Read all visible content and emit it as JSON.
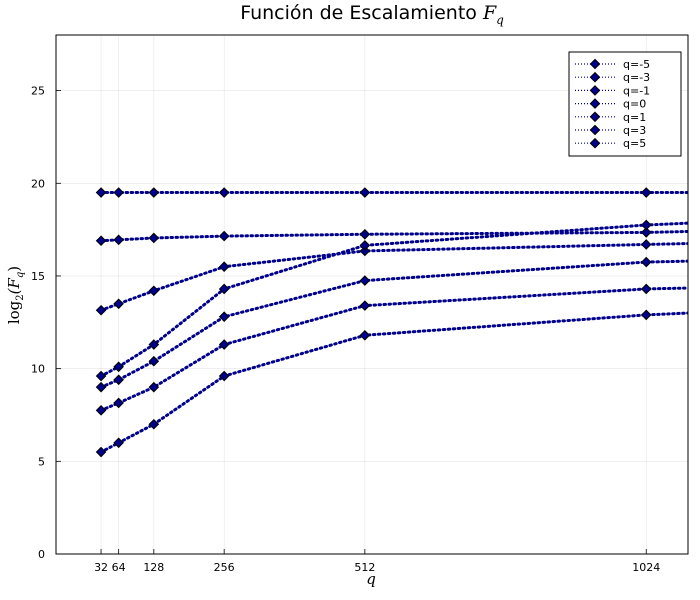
{
  "chart_data": {
    "type": "line",
    "title": "Función de Escalamiento F_q",
    "title_main": "Función de Escalamiento ",
    "title_math": "F",
    "title_sub": "q",
    "xlabel": "q",
    "ylabel_math": "log",
    "ylabel_sub": "2",
    "ylabel_arg": "(F",
    "ylabel_arg_sub": "q",
    "ylabel_close": ")",
    "x": [
      32,
      64,
      128,
      256,
      512,
      1024,
      1100
    ],
    "xlim": [
      -50,
      1100
    ],
    "ylim": [
      0,
      28
    ],
    "xticks": [
      32,
      64,
      128,
      256,
      512,
      1024
    ],
    "xtick_labels": [
      "32",
      "64",
      "128",
      "256",
      "512",
      "1024"
    ],
    "yticks": [
      0,
      5,
      10,
      15,
      20,
      25
    ],
    "ytick_labels": [
      "0",
      "5",
      "10",
      "15",
      "20",
      "25"
    ],
    "grid": true,
    "legend_position": "top-right",
    "line_color": "#00008b",
    "marker": "diamond",
    "series": [
      {
        "name": "q=-5",
        "values": [
          19.5,
          19.5,
          19.5,
          19.5,
          19.5,
          19.5,
          19.5
        ]
      },
      {
        "name": "q=-3",
        "values": [
          16.9,
          16.95,
          17.05,
          17.15,
          17.25,
          17.35,
          17.4
        ]
      },
      {
        "name": "q=-1",
        "values": [
          13.15,
          13.5,
          14.2,
          15.5,
          16.35,
          16.7,
          16.75
        ]
      },
      {
        "name": "q=0",
        "values": [
          9.6,
          10.1,
          11.3,
          14.3,
          16.65,
          17.75,
          17.85
        ]
      },
      {
        "name": "q=1",
        "values": [
          9.0,
          9.4,
          10.4,
          12.8,
          14.75,
          15.75,
          15.8
        ]
      },
      {
        "name": "q=3",
        "values": [
          7.75,
          8.15,
          9.0,
          11.3,
          13.4,
          14.3,
          14.35
        ]
      },
      {
        "name": "q=5",
        "values": [
          5.5,
          6.0,
          7.0,
          9.6,
          11.8,
          12.9,
          13.0
        ]
      }
    ]
  }
}
